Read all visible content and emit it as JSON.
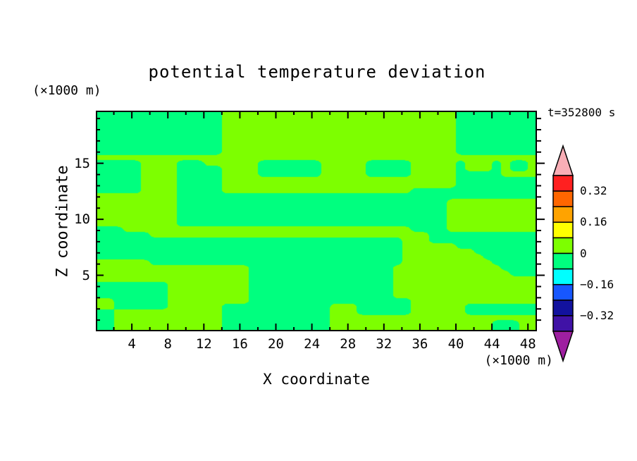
{
  "title": "potential temperature deviation",
  "time_label": "t=352800 s",
  "axes": {
    "x": {
      "label": "X coordinate",
      "unit": "(×1000 m)",
      "tick_labels": [
        "4",
        "8",
        "12",
        "16",
        "20",
        "24",
        "28",
        "32",
        "36",
        "40",
        "44",
        "48"
      ],
      "tick_values": [
        4,
        8,
        12,
        16,
        20,
        24,
        28,
        32,
        36,
        40,
        44,
        48
      ],
      "minor_tick_step": 2,
      "range": [
        0,
        49
      ]
    },
    "y": {
      "label": "Z coordinate",
      "unit": "(×1000 m)",
      "tick_labels": [
        "5",
        "10",
        "15"
      ],
      "tick_values": [
        5,
        10,
        15
      ],
      "minor_tick_step": 1,
      "range": [
        0,
        19.7
      ]
    }
  },
  "colorbar": {
    "tick_labels": [
      "0.32",
      "0.16",
      "0",
      "−0.16",
      "−0.32"
    ],
    "segment_colors_top_to_bottom": [
      "#ff2020",
      "#ff6600",
      "#ffa300",
      "#ffff00",
      "#7dff00",
      "#00ff7f",
      "#00ffff",
      "#1757ff",
      "#12129e",
      "#4012a6"
    ],
    "arrow_top_color": "#f9aeb6",
    "arrow_bottom_color": "#9e1fa0",
    "outline_color": "#000000"
  },
  "chart_data": {
    "type": "filled_contour",
    "title": "potential temperature deviation",
    "xlabel": "X coordinate (×1000 m)",
    "ylabel": "Z coordinate (×1000 m)",
    "time": "t=352800 s",
    "x_range": [
      0,
      49
    ],
    "z_range": [
      0,
      19.7
    ],
    "contour_interval": 0.08,
    "visible_bands": {
      "positive_0_to_0.08": "#7dff00",
      "negative_-0.08_to_0": "#00ff7f"
    },
    "grid_note": "Sign of potential temperature deviation on a 49(x)×40(z) grid, rows top (z≈20) to bottom (z≈0); X = positive band (0..+0.08, chartreuse), . = negative band (−0.08..0, spring green)",
    "field_sign_grid": [
      "..............XXXXXXXXXXXXXXXXXXXXXXXXXX.........",
      "..............XXXXXXXXXXXXXXXXXXXXXXXXXX.........",
      "..............XXXXXXXXXXXXXXXXXXXXXXXXXX.........",
      "..............XXXXXXXXXXXXXXXXXXXXXXXXXX.........",
      "..............XXXXXXXXXXXXXXXXXXXXXXXXXX.........",
      "..............XXXXXXXXXXXXXXXXXXXXXXXXXX.........",
      "..............XXXXXXXXXXXXXXXXXXXXXXXXXX.........",
      "..............XXXXXXXXXXXXXXXXXXXXXXXXXX.........",
      "XXXXXXXXXXXXXXXXXXXXXXXXXXXXXXXXXXXXXXXXXXXXXXXXX",
      ".....XXXX...XXXXXX.......XXXXX.....XXXXX.XXX.X..X",
      ".....XXXX.....XXXX.......XXXXX.....XXXXX.XXX.X..X",
      ".....XXXX.....XXXX.......XXXXX.....XXXXX.....XXXX",
      ".....XXXX.....XXXXXXXXXXXXXXXXXXXXXXXXXX.........",
      ".....XXXX.....XXXXXXXXXXXXXXXXXXXXXXXXXX.........",
      ".....XXXX.....XXXXXXXXXXXXXXXXXXXXX..............",
      "XXXXXXXXX........................................",
      "XXXXXXXXX..............................XXXXXXXXXX",
      "XXXXXXXXX..............................XXXXXXXXXX",
      "XXXXXXXXX..............................XXXXXXXXXX",
      "XXXXXXXXX..............................XXXXXXXXXX",
      "XXXXXXXXX..............................XXXXXXXXXX",
      "...XXXXXXXXXXXXXXXXXXXXXXXXXXXXXXXX....XXXXXXXXXX",
      "......XXXXXXXXXXXXXXXXXXXXXXXXXXXXXXX............",
      "..................................XXX............",
      "..................................XXXXXX.........",
      "..................................XXXXXXXX.......",
      "..................................XXXXXXXXX......",
      "XXXXXX............................XXXXXXXXXX.....",
      "XXXXXXXXXXXXXXXXX................XXXXXXXXXXXX....",
      "XXXXXXXXXXXXXXXXX................XXXXXXXXXXXXX...",
      "XXXXXXXXXXXXXXXXX................XXXXXXXXXXXXXXXX",
      "........XXXXXXXXX................XXXXXXXXXXXXXXXX",
      "........XXXXXXXXX................XXXXXXXXXXXXXXXX",
      "........XXXXXXXXX................XXXXXXXXXXXXXXXX",
      "XX......XXXXXXXXX..................XXXXXXXXXXXXXX",
      "XX......XXXXXX............XXX......XXXXXX........",
      "..XXXXXXXXXXXX............XXX......XXXXXX........",
      "..XXXXXXXXXXXX............XXXXXXXXXXXXXXXXXXXXXXX",
      "..XXXXXXXXXXXX............XXXXXXXXXXXXXXXXXX...XX",
      "..XXXXXXXXXXXX............XXXXXXXXXXXXXXXXXX...XX"
    ]
  }
}
